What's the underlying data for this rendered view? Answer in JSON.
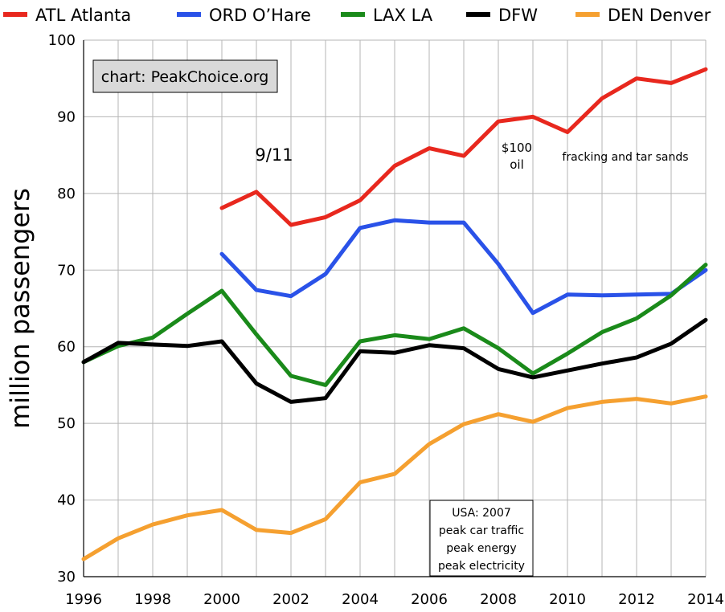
{
  "chart_data": {
    "type": "line",
    "title": "",
    "xlabel": "",
    "ylabel": "million passengers",
    "xlim": [
      1996,
      2014
    ],
    "ylim": [
      30,
      100
    ],
    "x_ticks": [
      "1996",
      "1998",
      "2000",
      "2002",
      "2004",
      "2006",
      "2008",
      "2010",
      "2012",
      "2014"
    ],
    "y_ticks": [
      "30",
      "40",
      "50",
      "60",
      "70",
      "80",
      "90",
      "100"
    ],
    "grid": true,
    "legend_position": "top",
    "series": [
      {
        "name": "ATL Atlanta",
        "color": "#e8281e",
        "x": [
          2000,
          2001,
          2002,
          2003,
          2004,
          2005,
          2006,
          2007,
          2008,
          2009,
          2010,
          2011,
          2012,
          2013,
          2014
        ],
        "values": [
          78.1,
          80.2,
          75.9,
          76.9,
          79.1,
          83.6,
          85.9,
          84.9,
          89.4,
          90.0,
          88.0,
          92.4,
          95.0,
          94.4,
          96.2
        ]
      },
      {
        "name": "ORD O’Hare",
        "color": "#2a52e8",
        "x": [
          2000,
          2001,
          2002,
          2003,
          2004,
          2005,
          2006,
          2007,
          2008,
          2009,
          2010,
          2011,
          2012,
          2013,
          2014
        ],
        "values": [
          72.1,
          67.4,
          66.6,
          69.5,
          75.5,
          76.5,
          76.2,
          76.2,
          70.8,
          64.4,
          66.8,
          66.7,
          66.8,
          66.9,
          70.0
        ]
      },
      {
        "name": "LAX LA",
        "color": "#1a8a1a",
        "x": [
          1996,
          1997,
          1998,
          1999,
          2000,
          2001,
          2002,
          2003,
          2004,
          2005,
          2006,
          2007,
          2008,
          2009,
          2010,
          2011,
          2012,
          2013,
          2014
        ],
        "values": [
          58.0,
          60.1,
          61.2,
          64.3,
          67.3,
          61.6,
          56.2,
          55.0,
          60.7,
          61.5,
          61.0,
          62.4,
          59.8,
          56.5,
          59.1,
          61.9,
          63.7,
          66.7,
          70.7
        ]
      },
      {
        "name": "DFW",
        "color": "#000000",
        "x": [
          1996,
          1997,
          1998,
          1999,
          2000,
          2001,
          2002,
          2003,
          2004,
          2005,
          2006,
          2007,
          2008,
          2009,
          2010,
          2011,
          2012,
          2013,
          2014
        ],
        "values": [
          58.0,
          60.5,
          60.3,
          60.1,
          60.7,
          55.2,
          52.8,
          53.3,
          59.4,
          59.2,
          60.2,
          59.8,
          57.1,
          56.0,
          56.9,
          57.8,
          58.6,
          60.4,
          63.5
        ]
      },
      {
        "name": "DEN Denver",
        "color": "#f5a030",
        "x": [
          1996,
          1997,
          1998,
          1999,
          2000,
          2001,
          2002,
          2003,
          2004,
          2005,
          2006,
          2007,
          2008,
          2009,
          2010,
          2011,
          2012,
          2013,
          2014
        ],
        "values": [
          32.3,
          35.0,
          36.8,
          38.0,
          38.7,
          36.1,
          35.7,
          37.5,
          42.3,
          43.4,
          47.3,
          49.9,
          51.2,
          50.2,
          52.0,
          52.8,
          53.2,
          52.6,
          53.5
        ]
      }
    ],
    "annotations": {
      "source": "chart: PeakChoice.org",
      "event_911": "9/11",
      "oil_line1": "$100",
      "oil_line2": "oil",
      "fracking": "fracking and tar sands",
      "usa_lines": [
        "USA: 2007",
        "peak car traffic",
        "peak energy",
        "peak electricity"
      ]
    }
  }
}
